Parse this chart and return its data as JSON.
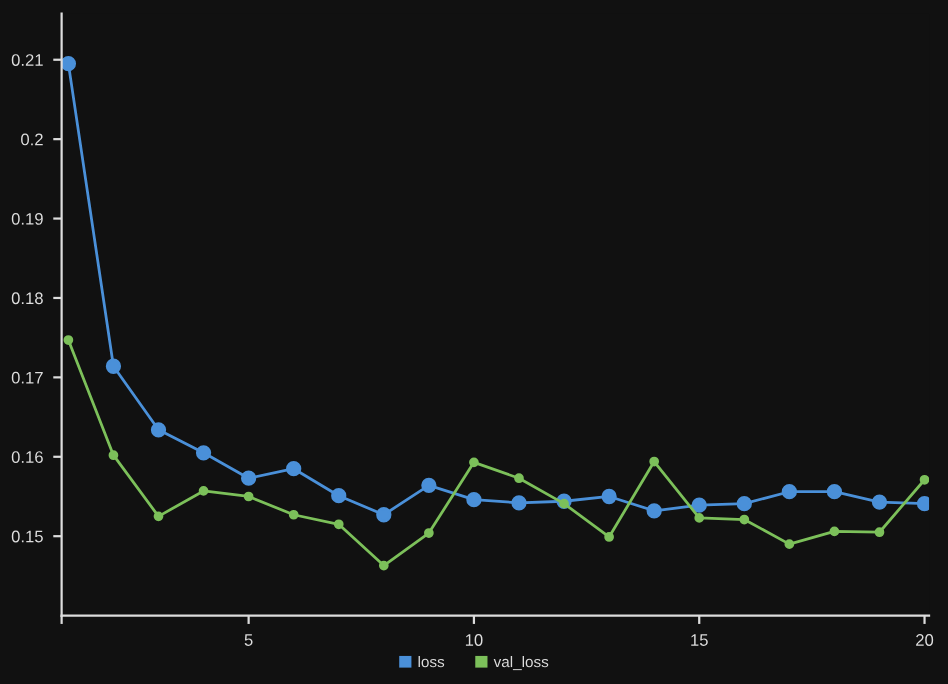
{
  "chart_data": {
    "type": "line",
    "x": [
      1,
      2,
      3,
      4,
      5,
      6,
      7,
      8,
      9,
      10,
      11,
      12,
      13,
      14,
      15,
      16,
      17,
      18,
      19,
      20
    ],
    "series": [
      {
        "name": "loss",
        "color": "#4a90d9",
        "values": [
          0.2095,
          0.1714,
          0.1634,
          0.1605,
          0.1573,
          0.1585,
          0.1551,
          0.1527,
          0.1564,
          0.1546,
          0.1542,
          0.1544,
          0.155,
          0.1532,
          0.1539,
          0.1541,
          0.1556,
          0.1556,
          0.1543,
          0.1541
        ]
      },
      {
        "name": "val_loss",
        "color": "#7cc05a",
        "values": [
          0.1747,
          0.1602,
          0.1525,
          0.1557,
          0.155,
          0.1527,
          0.1515,
          0.1463,
          0.1504,
          0.1593,
          0.1573,
          0.1541,
          0.1499,
          0.1594,
          0.1523,
          0.1521,
          0.149,
          0.1506,
          0.1505,
          0.1571
        ]
      }
    ],
    "xlim": [
      0.85,
      20.1
    ],
    "xticks": [
      {
        "value": 0.85,
        "label": null
      },
      5,
      10,
      15,
      20
    ],
    "ylim": [
      0.14,
      0.2158
    ],
    "yticks": [
      0.15,
      0.16,
      0.17,
      0.18,
      0.19,
      0.2,
      0.21
    ],
    "marker": "circle",
    "line_style": "solid",
    "grid": false,
    "legend": "bottom"
  }
}
